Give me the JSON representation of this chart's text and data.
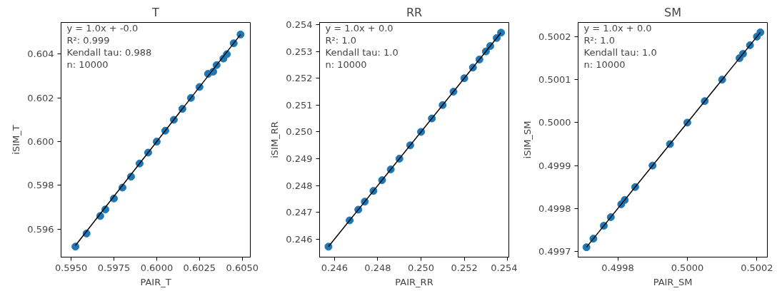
{
  "chart_data": [
    {
      "type": "scatter",
      "title": "T",
      "xlabel": "PAIR_T",
      "ylabel": "iSIM_T",
      "grid": false,
      "annotations": [
        "y = 1.0x + -0.0",
        "R²: 0.999",
        "Kendall tau: 0.988",
        "n: 10000"
      ],
      "xlim": [
        0.59441,
        0.60547
      ],
      "ylim": [
        0.59472,
        0.60545
      ],
      "xticks": [
        {
          "value": 0.595,
          "label": "0.5950"
        },
        {
          "value": 0.5975,
          "label": "0.5975"
        },
        {
          "value": 0.6,
          "label": "0.6000"
        },
        {
          "value": 0.6025,
          "label": "0.6025"
        },
        {
          "value": 0.605,
          "label": "0.6050"
        }
      ],
      "yticks": [
        {
          "value": 0.596,
          "label": "0.596"
        },
        {
          "value": 0.598,
          "label": "0.598"
        },
        {
          "value": 0.6,
          "label": "0.600"
        },
        {
          "value": 0.602,
          "label": "0.602"
        },
        {
          "value": 0.604,
          "label": "0.604"
        }
      ],
      "series": [
        {
          "marker": "circle",
          "color": "#1f77b4",
          "x": [
            0.59525,
            0.5959,
            0.5967,
            0.597,
            0.5975,
            0.598,
            0.5985,
            0.599,
            0.5995,
            0.6,
            0.6005,
            0.601,
            0.6015,
            0.602,
            0.6025,
            0.603,
            0.6033,
            0.6035,
            0.6039,
            0.6041,
            0.6045,
            0.6049
          ],
          "values": [
            0.5952,
            0.5958,
            0.5966,
            0.5969,
            0.5974,
            0.5979,
            0.5984,
            0.599,
            0.5995,
            0.6,
            0.6005,
            0.601,
            0.6015,
            0.602,
            0.6025,
            0.6031,
            0.6032,
            0.6035,
            0.6038,
            0.604,
            0.6045,
            0.6049
          ]
        },
        {
          "type": "line",
          "marker": "none",
          "color": "#000000",
          "x": [
            0.59525,
            0.6049
          ],
          "values": [
            0.59525,
            0.6049
          ]
        }
      ]
    },
    {
      "type": "scatter",
      "title": "RR",
      "xlabel": "PAIR_RR",
      "ylabel": "iSIM_RR",
      "grid": false,
      "annotations": [
        "y = 1.0x + 0.0",
        "R²: 1.0",
        "Kendall tau: 1.0",
        "n: 10000"
      ],
      "xlim": [
        0.24531,
        0.25406
      ],
      "ylim": [
        0.24533,
        0.25408
      ],
      "xticks": [
        {
          "value": 0.246,
          "label": "0.246"
        },
        {
          "value": 0.248,
          "label": "0.248"
        },
        {
          "value": 0.25,
          "label": "0.250"
        },
        {
          "value": 0.252,
          "label": "0.252"
        },
        {
          "value": 0.254,
          "label": "0.254"
        }
      ],
      "yticks": [
        {
          "value": 0.246,
          "label": "0.246"
        },
        {
          "value": 0.247,
          "label": "0.247"
        },
        {
          "value": 0.248,
          "label": "0.248"
        },
        {
          "value": 0.249,
          "label": "0.249"
        },
        {
          "value": 0.25,
          "label": "0.250"
        },
        {
          "value": 0.251,
          "label": "0.251"
        },
        {
          "value": 0.252,
          "label": "0.252"
        },
        {
          "value": 0.253,
          "label": "0.253"
        },
        {
          "value": 0.254,
          "label": "0.254"
        }
      ],
      "series": [
        {
          "marker": "circle",
          "color": "#1f77b4",
          "x": [
            0.24572,
            0.2467,
            0.2471,
            0.2474,
            0.2478,
            0.2482,
            0.2486,
            0.249,
            0.2495,
            0.25,
            0.2505,
            0.251,
            0.2515,
            0.252,
            0.2524,
            0.2527,
            0.253,
            0.2532,
            0.2535,
            0.2537
          ],
          "values": [
            0.24572,
            0.2467,
            0.2471,
            0.2474,
            0.2478,
            0.2482,
            0.2486,
            0.249,
            0.2495,
            0.25,
            0.2505,
            0.251,
            0.2515,
            0.252,
            0.2524,
            0.2527,
            0.253,
            0.2532,
            0.2535,
            0.2537
          ]
        },
        {
          "type": "line",
          "marker": "none",
          "color": "#000000",
          "x": [
            0.24572,
            0.2537
          ],
          "values": [
            0.24572,
            0.2537
          ]
        }
      ]
    },
    {
      "type": "scatter",
      "title": "SM",
      "xlabel": "PAIR_SM",
      "ylabel": "iSIM_SM",
      "grid": false,
      "annotations": [
        "y = 1.0x + 0.0",
        "R²: 1.0",
        "Kendall tau: 1.0",
        "n: 10000"
      ],
      "xlim": [
        0.499686,
        0.50023
      ],
      "ylim": [
        0.499687,
        0.500233
      ],
      "xticks": [
        {
          "value": 0.4998,
          "label": "0.4998"
        },
        {
          "value": 0.5,
          "label": "0.5000"
        },
        {
          "value": 0.5002,
          "label": "0.5002"
        }
      ],
      "yticks": [
        {
          "value": 0.4997,
          "label": "0.4997"
        },
        {
          "value": 0.4998,
          "label": "0.4998"
        },
        {
          "value": 0.4999,
          "label": "0.4999"
        },
        {
          "value": 0.5,
          "label": "0.5000"
        },
        {
          "value": 0.5001,
          "label": "0.5001"
        },
        {
          "value": 0.5002,
          "label": "0.5002"
        }
      ],
      "series": [
        {
          "marker": "circle",
          "color": "#1f77b4",
          "x": [
            0.49971,
            0.49973,
            0.49976,
            0.49978,
            0.49981,
            0.49982,
            0.49985,
            0.4999,
            0.49995,
            0.5,
            0.50005,
            0.5001,
            0.50015,
            0.50016,
            0.50018,
            0.5002,
            0.50021
          ],
          "values": [
            0.49971,
            0.49973,
            0.49976,
            0.49978,
            0.49981,
            0.49982,
            0.49985,
            0.4999,
            0.49995,
            0.5,
            0.50005,
            0.5001,
            0.50015,
            0.50016,
            0.50018,
            0.5002,
            0.50021
          ]
        },
        {
          "type": "line",
          "marker": "none",
          "color": "#000000",
          "x": [
            0.49971,
            0.50021
          ],
          "values": [
            0.49971,
            0.50021
          ]
        }
      ]
    }
  ]
}
